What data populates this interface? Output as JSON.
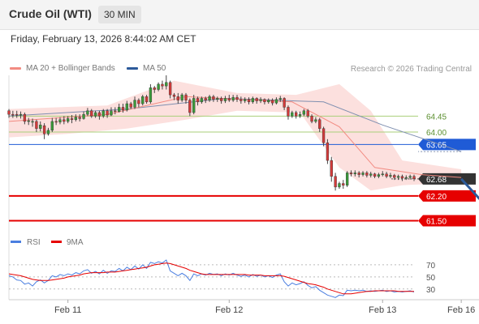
{
  "header": {
    "instrument": "Crude Oil (WTI)",
    "interval": "30 MIN"
  },
  "datetime": "Friday, February 13, 2026 8:44:02 AM CET",
  "legend": {
    "ma20_bb": "MA 20 + Bollinger Bands",
    "ma50": "MA 50",
    "ma20_color": "#f28b82",
    "ma50_color": "#2c5a9a"
  },
  "copyright": "Research © 2026 Trading Central",
  "rsi_legend": {
    "rsi": "RSI",
    "ma9": "9MA",
    "rsi_color": "#4a7ee0",
    "ma9_color": "#e60000"
  },
  "chart_data": [
    {
      "type": "candlestick",
      "x_tick_labels": [
        "Feb 11",
        "Feb 12",
        "Feb 13",
        "Feb 16"
      ],
      "x_tick_index": [
        15,
        56,
        95,
        115
      ],
      "ylim": [
        61.1,
        65.6
      ],
      "candles": [
        [
          64.6,
          64.5,
          64.65,
          64.4
        ],
        [
          64.5,
          64.48,
          64.6,
          64.4
        ],
        [
          64.5,
          64.48,
          64.6,
          64.4
        ],
        [
          64.48,
          64.5,
          64.58,
          64.38
        ],
        [
          64.5,
          64.3,
          64.55,
          64.22
        ],
        [
          64.3,
          64.32,
          64.4,
          64.2
        ],
        [
          64.3,
          64.3,
          64.38,
          64.15
        ],
        [
          64.3,
          64.1,
          64.35,
          64.0
        ],
        [
          64.1,
          64.2,
          64.3,
          64.02
        ],
        [
          64.18,
          63.95,
          64.25,
          63.8
        ],
        [
          63.95,
          64.05,
          64.12,
          63.9
        ],
        [
          64.05,
          64.3,
          64.4,
          64.0
        ],
        [
          64.3,
          64.28,
          64.4,
          64.2
        ],
        [
          64.28,
          64.35,
          64.42,
          64.22
        ],
        [
          64.35,
          64.3,
          64.45,
          64.22
        ],
        [
          64.3,
          64.38,
          64.45,
          64.25
        ],
        [
          64.38,
          64.35,
          64.48,
          64.25
        ],
        [
          64.35,
          64.42,
          64.5,
          64.3
        ],
        [
          64.42,
          64.38,
          64.5,
          64.3
        ],
        [
          64.38,
          64.5,
          64.58,
          64.35
        ],
        [
          64.5,
          64.6,
          64.68,
          64.45
        ],
        [
          64.6,
          64.45,
          64.65,
          64.4
        ],
        [
          64.45,
          64.55,
          64.6,
          64.4
        ],
        [
          64.55,
          64.45,
          64.6,
          64.35
        ],
        [
          64.45,
          64.6,
          64.65,
          64.4
        ],
        [
          64.6,
          64.48,
          64.65,
          64.4
        ],
        [
          64.48,
          64.6,
          64.7,
          64.45
        ],
        [
          64.6,
          64.58,
          64.7,
          64.5
        ],
        [
          64.58,
          64.7,
          64.8,
          64.55
        ],
        [
          64.7,
          64.62,
          64.8,
          64.55
        ],
        [
          64.62,
          64.8,
          64.88,
          64.58
        ],
        [
          64.8,
          64.7,
          64.85,
          64.65
        ],
        [
          64.7,
          64.9,
          65.0,
          64.65
        ],
        [
          64.9,
          64.8,
          64.95,
          64.7
        ],
        [
          64.8,
          65.0,
          65.05,
          64.75
        ],
        [
          65.0,
          64.85,
          65.05,
          64.8
        ],
        [
          64.85,
          65.25,
          65.35,
          64.8
        ],
        [
          65.25,
          65.2,
          65.3,
          65.1
        ],
        [
          65.2,
          65.35,
          65.4,
          65.15
        ],
        [
          65.35,
          65.3,
          65.45,
          65.2
        ],
        [
          65.3,
          65.4,
          65.6,
          65.2
        ],
        [
          65.4,
          65.05,
          65.45,
          64.95
        ],
        [
          65.05,
          65.0,
          65.1,
          64.9
        ],
        [
          65.0,
          64.9,
          65.1,
          64.8
        ],
        [
          64.9,
          65.05,
          65.1,
          64.85
        ],
        [
          65.05,
          64.9,
          65.1,
          64.8
        ],
        [
          64.9,
          64.55,
          64.95,
          64.45
        ],
        [
          64.55,
          64.95,
          65.05,
          64.5
        ],
        [
          64.95,
          64.85,
          65.0,
          64.75
        ],
        [
          64.85,
          64.95,
          65.0,
          64.8
        ],
        [
          64.95,
          64.9,
          65.0,
          64.82
        ],
        [
          64.9,
          65.0,
          65.05,
          64.85
        ],
        [
          65.0,
          64.92,
          65.05,
          64.85
        ],
        [
          64.92,
          64.95,
          65.0,
          64.85
        ],
        [
          64.95,
          64.88,
          65.0,
          64.8
        ],
        [
          64.88,
          64.95,
          65.02,
          64.82
        ],
        [
          64.95,
          64.9,
          65.05,
          64.85
        ],
        [
          64.9,
          64.98,
          65.05,
          64.85
        ],
        [
          64.98,
          64.92,
          65.05,
          64.85
        ],
        [
          64.92,
          64.88,
          65.0,
          64.8
        ],
        [
          64.88,
          64.92,
          64.98,
          64.82
        ],
        [
          64.92,
          64.85,
          64.98,
          64.78
        ],
        [
          64.85,
          64.95,
          65.0,
          64.8
        ],
        [
          64.95,
          64.88,
          64.98,
          64.8
        ],
        [
          64.88,
          64.92,
          64.98,
          64.82
        ],
        [
          64.92,
          64.85,
          64.95,
          64.78
        ],
        [
          64.85,
          64.9,
          64.95,
          64.8
        ],
        [
          64.9,
          64.82,
          64.95,
          64.75
        ],
        [
          64.82,
          64.92,
          64.98,
          64.78
        ],
        [
          64.92,
          64.95,
          65.02,
          64.85
        ],
        [
          64.95,
          64.7,
          64.98,
          64.62
        ],
        [
          64.7,
          64.45,
          64.75,
          64.35
        ],
        [
          64.45,
          64.55,
          64.6,
          64.4
        ],
        [
          64.55,
          64.45,
          64.6,
          64.38
        ],
        [
          64.45,
          64.5,
          64.58,
          64.4
        ],
        [
          64.5,
          64.6,
          64.65,
          64.45
        ],
        [
          64.6,
          64.45,
          64.65,
          64.4
        ],
        [
          64.45,
          64.3,
          64.5,
          64.25
        ],
        [
          64.3,
          64.35,
          64.42,
          64.25
        ],
        [
          64.35,
          64.1,
          64.4,
          64.0
        ],
        [
          64.1,
          63.7,
          64.15,
          63.6
        ],
        [
          63.7,
          63.2,
          63.8,
          63.1
        ],
        [
          63.2,
          62.75,
          63.3,
          62.6
        ],
        [
          62.75,
          62.45,
          62.85,
          62.35
        ],
        [
          62.45,
          62.55,
          62.6,
          62.4
        ],
        [
          62.55,
          62.5,
          62.65,
          62.4
        ],
        [
          62.5,
          62.85,
          62.9,
          62.45
        ],
        [
          62.85,
          62.82,
          62.92,
          62.75
        ],
        [
          62.82,
          62.85,
          62.92,
          62.75
        ],
        [
          62.85,
          62.8,
          62.9,
          62.72
        ],
        [
          62.8,
          62.85,
          62.9,
          62.75
        ],
        [
          62.85,
          62.78,
          62.9,
          62.72
        ],
        [
          62.78,
          62.82,
          62.88,
          62.72
        ],
        [
          62.82,
          62.75,
          62.85,
          62.7
        ],
        [
          62.75,
          62.8,
          62.85,
          62.7
        ],
        [
          62.8,
          62.82,
          62.9,
          62.75
        ],
        [
          62.82,
          62.75,
          62.88,
          62.7
        ],
        [
          62.75,
          62.78,
          62.85,
          62.7
        ],
        [
          62.78,
          62.72,
          62.82,
          62.65
        ],
        [
          62.72,
          62.75,
          62.8,
          62.65
        ],
        [
          62.75,
          62.7,
          62.8,
          62.62
        ],
        [
          62.7,
          62.72,
          62.78,
          62.65
        ],
        [
          62.72,
          62.75,
          62.8,
          62.66
        ],
        [
          62.75,
          62.68,
          62.8,
          62.62
        ]
      ],
      "ma50_points": [
        [
          0,
          64.45
        ],
        [
          30,
          64.65
        ],
        [
          55,
          64.95
        ],
        [
          80,
          64.85
        ],
        [
          95,
          64.2
        ],
        [
          115,
          63.45
        ]
      ],
      "ma20_points": [
        [
          0,
          64.3
        ],
        [
          25,
          64.5
        ],
        [
          45,
          65.0
        ],
        [
          72,
          64.85
        ],
        [
          84,
          64.15
        ],
        [
          93,
          63.0
        ],
        [
          105,
          62.8
        ],
        [
          115,
          62.72
        ]
      ],
      "bollinger_upper": [
        [
          0,
          64.65
        ],
        [
          25,
          64.75
        ],
        [
          42,
          65.45
        ],
        [
          58,
          65.1
        ],
        [
          73,
          65.05
        ],
        [
          84,
          65.35
        ],
        [
          92,
          64.6
        ],
        [
          100,
          63.2
        ],
        [
          115,
          62.95
        ]
      ],
      "bollinger_lower": [
        [
          0,
          63.85
        ],
        [
          15,
          63.95
        ],
        [
          30,
          64.1
        ],
        [
          45,
          64.35
        ],
        [
          58,
          64.6
        ],
        [
          74,
          64.55
        ],
        [
          84,
          63.0
        ],
        [
          92,
          62.35
        ],
        [
          100,
          62.5
        ],
        [
          115,
          62.58
        ]
      ],
      "levels": [
        {
          "value": 64.45,
          "label": "64.45",
          "color": "#a9cf7a",
          "style": "thin"
        },
        {
          "value": 64.0,
          "label": "64.00",
          "color": "#a9cf7a",
          "style": "thin"
        },
        {
          "value": 63.65,
          "label": "63.65",
          "color": "#1f5bd6",
          "style": "pivot"
        },
        {
          "value": 62.68,
          "label": "62.68",
          "color": "#333333",
          "style": "last"
        },
        {
          "value": 62.2,
          "label": "62.20",
          "color": "#e60000",
          "style": "support"
        },
        {
          "value": 61.5,
          "label": "61.50",
          "color": "#e60000",
          "style": "support"
        }
      ],
      "projection": {
        "from": [
          115,
          62.68
        ],
        "to": [
          124,
          61.55
        ],
        "color": "#2c5a9a"
      }
    },
    {
      "type": "line",
      "name": "RSI",
      "ylim": [
        15,
        90
      ],
      "y_tick_labels": [
        "70",
        "50",
        "30"
      ],
      "y_tick_values": [
        70,
        50,
        30
      ],
      "series": [
        {
          "name": "RSI",
          "values": [
            52,
            50,
            45,
            44,
            38,
            40,
            35,
            42,
            45,
            40,
            44,
            52,
            50,
            54,
            52,
            55,
            53,
            57,
            55,
            60,
            62,
            56,
            59,
            55,
            61,
            56,
            60,
            59,
            64,
            60,
            66,
            62,
            68,
            63,
            70,
            64,
            74,
            72,
            75,
            73,
            78,
            60,
            56,
            52,
            56,
            52,
            44,
            55,
            52,
            55,
            53,
            56,
            54,
            55,
            52,
            55,
            53,
            56,
            53,
            51,
            53,
            50,
            54,
            51,
            53,
            50,
            52,
            49,
            53,
            55,
            42,
            35,
            40,
            37,
            39,
            42,
            36,
            32,
            34,
            28,
            24,
            20,
            18,
            16,
            20,
            19,
            28,
            27,
            28,
            27,
            28,
            26,
            27,
            26,
            27,
            28,
            26,
            27,
            25,
            26,
            25,
            26,
            27,
            25
          ],
          "color": "#4a7ee0"
        },
        {
          "name": "9MA",
          "values": [
            55,
            54,
            53,
            52,
            50,
            48,
            46,
            45,
            44,
            44,
            44,
            45,
            46,
            47,
            48,
            50,
            51,
            52,
            53,
            55,
            56,
            57,
            57,
            57,
            57,
            58,
            58,
            58,
            59,
            60,
            61,
            62,
            63,
            64,
            65,
            66,
            68,
            70,
            71,
            72,
            73,
            72,
            70,
            68,
            66,
            64,
            61,
            59,
            57,
            55,
            54,
            54,
            54,
            54,
            54,
            54,
            54,
            54,
            54,
            54,
            54,
            53,
            53,
            53,
            53,
            52,
            52,
            52,
            52,
            52,
            51,
            49,
            47,
            45,
            43,
            41,
            39,
            38,
            37,
            35,
            33,
            30,
            28,
            26,
            24,
            22,
            22,
            22,
            23,
            24,
            25,
            26,
            26,
            27,
            27,
            27,
            27,
            27,
            27,
            26,
            26,
            26,
            26,
            26
          ],
          "color": "#e60000"
        }
      ]
    }
  ]
}
